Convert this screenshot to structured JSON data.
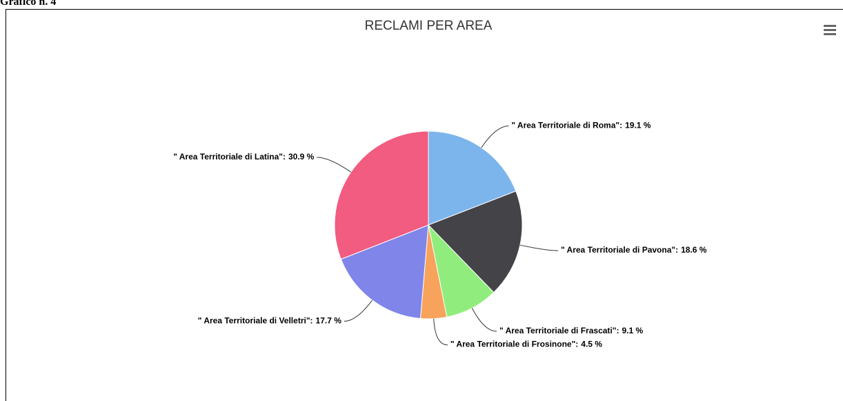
{
  "caption": "Grafico n. 4",
  "chart_data": {
    "type": "pie",
    "title": "RECLAMI PER AREA",
    "categories": [
      "\" Area Territoriale di Roma\":",
      "\" Area Territoriale di Pavona\":",
      "\" Area Territoriale di Frascati\":",
      "\" Area Territoriale di Frosinone\":",
      "\" Area Territoriale di Velletri\":",
      "\" Area Territoriale di Latina\":"
    ],
    "values": [
      19.1,
      18.6,
      9.1,
      4.5,
      17.7,
      30.9
    ],
    "value_labels": [
      "19.1 %",
      "18.6 %",
      "9.1 %",
      "4.5 %",
      "17.7 %",
      "30.9 %"
    ],
    "colors": [
      "#7cb5ec",
      "#434348",
      "#90ed7d",
      "#f7a35c",
      "#8085e9",
      "#f15c80"
    ]
  }
}
